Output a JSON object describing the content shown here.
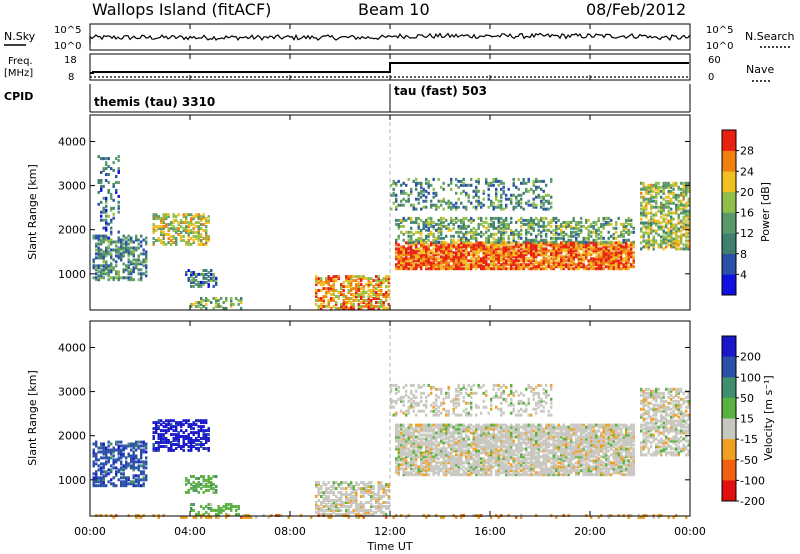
{
  "header": {
    "site": "Wallops Island (fitACF)",
    "beam": "Beam 10",
    "date": "08/Feb/2012"
  },
  "panels_top": {
    "nsky_label": "N.Sky",
    "nsky_ticks": [
      "10^5",
      "10^0"
    ],
    "nsearch_label": "N.Search",
    "nsearch_ticks": [
      "10^5",
      "10^0"
    ],
    "freq_label_1": "Freq.",
    "freq_label_2": "[MHz]",
    "freq_ticks": [
      "18",
      "8"
    ],
    "nave_label": "Nave",
    "nave_ticks": [
      "60",
      "0"
    ],
    "cpid_label": "CPID",
    "cpid_segments": [
      {
        "text": "themis (tau) 3310",
        "start_hour": 0
      },
      {
        "text": "tau (fast) 503",
        "start_hour": 12
      }
    ]
  },
  "time_axis": {
    "label": "Time UT",
    "ticks": [
      "00:00",
      "04:00",
      "08:00",
      "12:00",
      "16:00",
      "20:00",
      "00:00"
    ]
  },
  "chart_data": [
    {
      "type": "heatmap",
      "name": "power",
      "ylabel": "Slant Range [km]",
      "ylim": [
        180,
        4600
      ],
      "yticks": [
        "1000",
        "2000",
        "3000",
        "4000"
      ],
      "xlim_hours": [
        0,
        24
      ],
      "colorbar_label": "Power [dB]",
      "colorbar_ticks": [
        "4",
        "8",
        "12",
        "16",
        "20",
        "24",
        "28"
      ],
      "colorbar_range": [
        0,
        32
      ],
      "colors": [
        "#1010e0",
        "#2a4fa8",
        "#3f7f6e",
        "#5a9a6a",
        "#8fbf4a",
        "#f0c020",
        "#f08010",
        "#e82010"
      ],
      "regions": [
        {
          "t0": 0.1,
          "t1": 2.3,
          "r0": 900,
          "r1": 1900,
          "level": 0.35,
          "density": 0.5
        },
        {
          "t0": 0.3,
          "t1": 1.2,
          "r0": 1800,
          "r1": 3700,
          "level": 0.3,
          "density": 0.25
        },
        {
          "t0": 2.5,
          "t1": 4.7,
          "r0": 1700,
          "r1": 2400,
          "level": 0.6,
          "density": 0.55
        },
        {
          "t0": 3.8,
          "t1": 5.0,
          "r0": 750,
          "r1": 1150,
          "level": 0.3,
          "density": 0.5
        },
        {
          "t0": 4.0,
          "t1": 6.0,
          "r0": 250,
          "r1": 500,
          "level": 0.45,
          "density": 0.45
        },
        {
          "t0": 9.0,
          "t1": 11.9,
          "r0": 250,
          "r1": 1000,
          "level": 0.75,
          "density": 0.6
        },
        {
          "t0": 12.2,
          "t1": 21.8,
          "r0": 1150,
          "r1": 1750,
          "level": 0.85,
          "density": 0.85
        },
        {
          "t0": 12.2,
          "t1": 21.8,
          "r0": 1750,
          "r1": 2300,
          "level": 0.45,
          "density": 0.45
        },
        {
          "t0": 12.0,
          "t1": 18.5,
          "r0": 2500,
          "r1": 3200,
          "level": 0.35,
          "density": 0.3
        },
        {
          "t0": 22.0,
          "t1": 24.0,
          "r0": 1600,
          "r1": 3100,
          "level": 0.55,
          "density": 0.6
        }
      ]
    },
    {
      "type": "heatmap",
      "name": "velocity",
      "ylabel": "Slant Range [km]",
      "ylim": [
        180,
        4600
      ],
      "yticks": [
        "1000",
        "2000",
        "3000",
        "4000"
      ],
      "xlim_hours": [
        0,
        24
      ],
      "colorbar_label": "Velocity [m s⁻¹]",
      "colorbar_ticks": [
        "200",
        "100",
        "50",
        "15",
        "-15",
        "-50",
        "-100",
        "-200"
      ],
      "colors": [
        "#1818c8",
        "#2a4fa8",
        "#3f8f6e",
        "#5ab040",
        "#c8c8c0",
        "#f0a020",
        "#f06010",
        "#e01010"
      ],
      "regions": [
        {
          "t0": 0.1,
          "t1": 2.3,
          "r0": 900,
          "r1": 1900,
          "class": 1,
          "density": 0.55
        },
        {
          "t0": 2.5,
          "t1": 4.7,
          "r0": 1700,
          "r1": 2400,
          "class": 0,
          "density": 0.55
        },
        {
          "t0": 3.8,
          "t1": 5.0,
          "r0": 750,
          "r1": 1150,
          "class": 3,
          "density": 0.5
        },
        {
          "t0": 4.0,
          "t1": 6.0,
          "r0": 250,
          "r1": 500,
          "class": 3,
          "density": 0.4
        },
        {
          "t0": 9.0,
          "t1": 11.9,
          "r0": 250,
          "r1": 1000,
          "class": 4,
          "density": 0.6
        },
        {
          "t0": 12.2,
          "t1": 21.8,
          "r0": 1150,
          "r1": 2300,
          "class": 4,
          "density": 0.8
        },
        {
          "t0": 12.0,
          "t1": 18.5,
          "r0": 2500,
          "r1": 3200,
          "class": 4,
          "density": 0.3
        },
        {
          "t0": 22.0,
          "t1": 24.0,
          "r0": 1600,
          "r1": 3100,
          "class": 4,
          "density": 0.6
        },
        {
          "t0": 0.0,
          "t1": 24.0,
          "r0": 180,
          "r1": 260,
          "class": 5,
          "density": 0.25
        }
      ]
    }
  ]
}
